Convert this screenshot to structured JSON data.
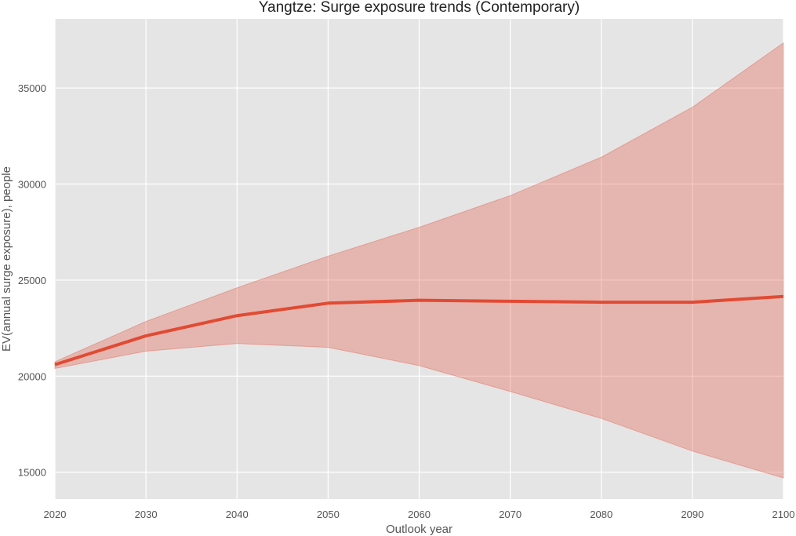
{
  "chart_data": {
    "type": "line",
    "title": "Yangtze: Surge exposure trends (Contemporary)",
    "xlabel": "Outlook year",
    "ylabel": "EV(annual surge exposure), people",
    "xlim": [
      2020,
      2100
    ],
    "ylim": [
      13600,
      38600
    ],
    "xticks": [
      2020,
      2030,
      2040,
      2050,
      2060,
      2070,
      2080,
      2090,
      2100
    ],
    "yticks": [
      15000,
      20000,
      25000,
      30000,
      35000
    ],
    "grid": true,
    "legend": "none",
    "x": [
      2020,
      2030,
      2040,
      2050,
      2060,
      2070,
      2080,
      2090,
      2100
    ],
    "series": [
      {
        "values": [
          20600,
          22100,
          23150,
          23800,
          23950,
          23900,
          23850,
          23850,
          24150
        ],
        "band_lower": [
          20400,
          21300,
          21700,
          21500,
          20550,
          19200,
          17800,
          16100,
          14700
        ],
        "band_upper": [
          20750,
          22850,
          24600,
          26250,
          27750,
          29400,
          31400,
          34000,
          37350
        ],
        "color": "#e24a33",
        "band_color": "#e24a33"
      }
    ],
    "style": {
      "background": "#e5e5e5",
      "grid_color": "#ffffff"
    }
  }
}
